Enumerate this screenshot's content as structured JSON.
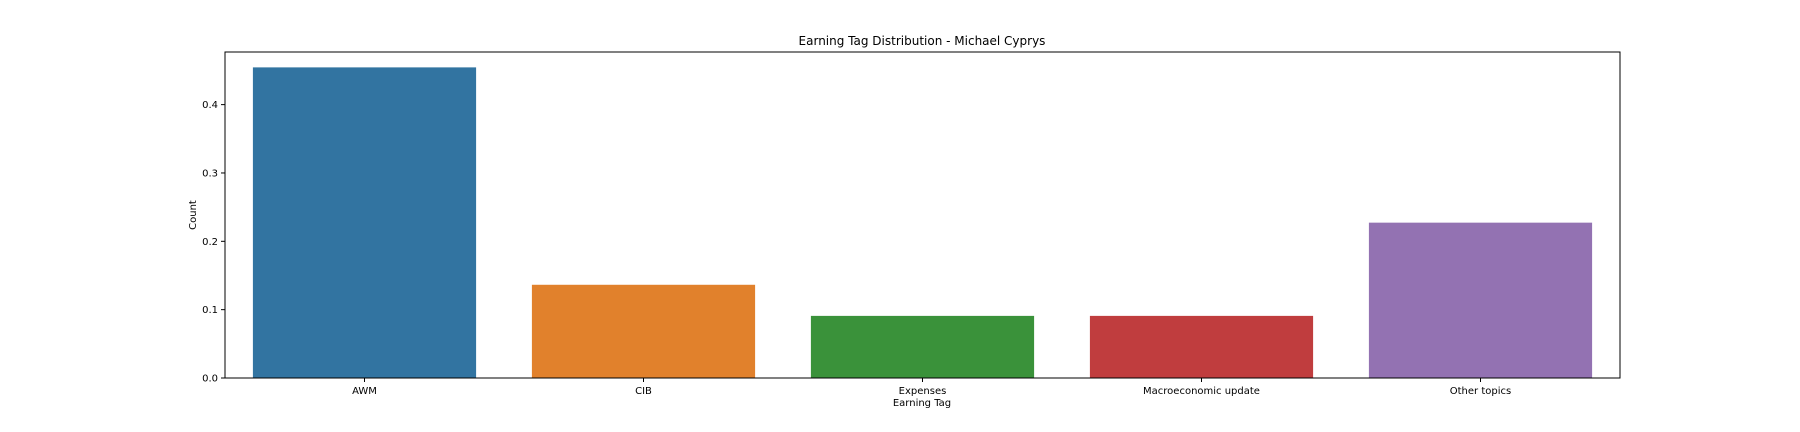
{
  "chart_data": {
    "type": "bar",
    "title": "Earning Tag Distribution - Michael Cyprys",
    "xlabel": "Earning Tag",
    "ylabel": "Count",
    "categories": [
      "AWM",
      "CIB",
      "Expenses",
      "Macroeconomic update",
      "Other topics"
    ],
    "values": [
      0.4545,
      0.1364,
      0.0909,
      0.0909,
      0.2273
    ],
    "colors": [
      "#3274a1",
      "#e1812c",
      "#3a923a",
      "#c03d3e",
      "#9372b2"
    ],
    "ylim": [
      0,
      0.477
    ],
    "yticks": [
      0.0,
      0.1,
      0.2,
      0.3,
      0.4
    ],
    "ytick_labels": [
      "0.0",
      "0.1",
      "0.2",
      "0.3",
      "0.4"
    ],
    "grid": false,
    "legend": "none"
  }
}
